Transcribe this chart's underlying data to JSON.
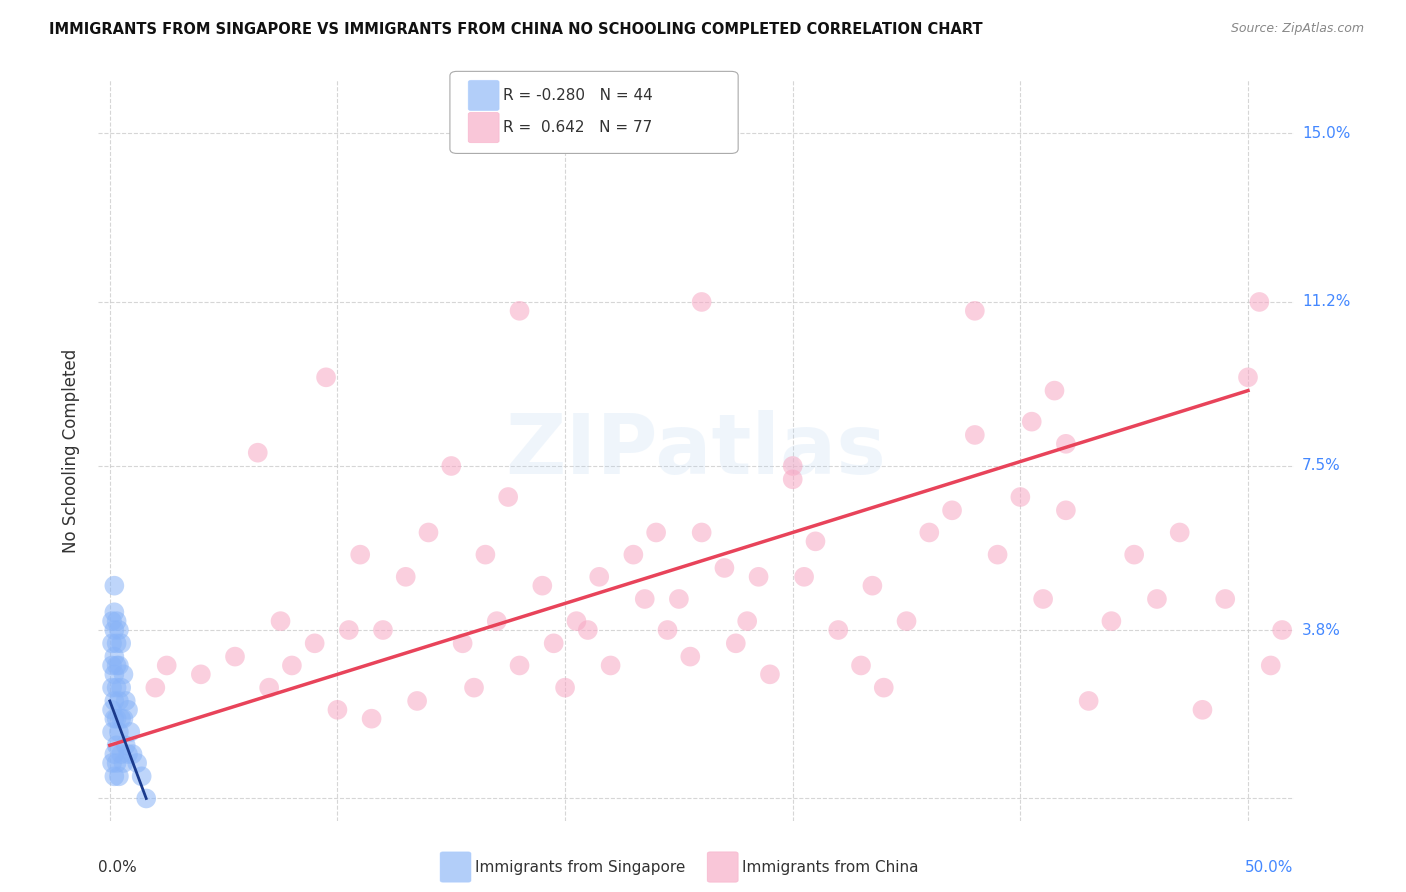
{
  "title": "IMMIGRANTS FROM SINGAPORE VS IMMIGRANTS FROM CHINA NO SCHOOLING COMPLETED CORRELATION CHART",
  "source": "Source: ZipAtlas.com",
  "ylabel": "No Schooling Completed",
  "ytick_vals": [
    0.0,
    0.038,
    0.075,
    0.112,
    0.15
  ],
  "ytick_labels": [
    "",
    "3.8%",
    "7.5%",
    "11.2%",
    "15.0%"
  ],
  "xtick_vals": [
    0.0,
    0.1,
    0.2,
    0.3,
    0.4,
    0.5
  ],
  "xlim": [
    -0.005,
    0.52
  ],
  "ylim": [
    -0.005,
    0.162
  ],
  "singapore_R": -0.28,
  "singapore_N": 44,
  "china_R": 0.642,
  "china_N": 77,
  "singapore_color": "#89b4f7",
  "china_color": "#f7a8c4",
  "singapore_line_color": "#1a3a8c",
  "china_line_color": "#e8435a",
  "legend_label_singapore": "Immigrants from Singapore",
  "legend_label_china": "Immigrants from China",
  "background_color": "#ffffff",
  "watermark_text": "ZIPatlas",
  "china_line_x0": 0.0,
  "china_line_x1": 0.5,
  "china_line_y0": 0.012,
  "china_line_y1": 0.092,
  "singapore_line_x0": 0.0,
  "singapore_line_x1": 0.016,
  "singapore_line_y0": 0.022,
  "singapore_line_y1": 0.0,
  "china_x": [
    0.02,
    0.025,
    0.04,
    0.055,
    0.065,
    0.07,
    0.075,
    0.08,
    0.09,
    0.095,
    0.1,
    0.105,
    0.11,
    0.115,
    0.12,
    0.13,
    0.135,
    0.14,
    0.15,
    0.155,
    0.16,
    0.165,
    0.17,
    0.175,
    0.18,
    0.19,
    0.195,
    0.2,
    0.205,
    0.21,
    0.215,
    0.22,
    0.23,
    0.235,
    0.24,
    0.245,
    0.25,
    0.255,
    0.26,
    0.27,
    0.275,
    0.28,
    0.285,
    0.29,
    0.3,
    0.305,
    0.31,
    0.32,
    0.33,
    0.335,
    0.34,
    0.35,
    0.36,
    0.37,
    0.38,
    0.39,
    0.4,
    0.405,
    0.41,
    0.415,
    0.42,
    0.43,
    0.44,
    0.45,
    0.46,
    0.47,
    0.48,
    0.49,
    0.5,
    0.505,
    0.51,
    0.515,
    0.42,
    0.3,
    0.18,
    0.26,
    0.38
  ],
  "china_y": [
    0.025,
    0.03,
    0.028,
    0.032,
    0.078,
    0.025,
    0.04,
    0.03,
    0.035,
    0.095,
    0.02,
    0.038,
    0.055,
    0.018,
    0.038,
    0.05,
    0.022,
    0.06,
    0.075,
    0.035,
    0.025,
    0.055,
    0.04,
    0.068,
    0.03,
    0.048,
    0.035,
    0.025,
    0.04,
    0.038,
    0.05,
    0.03,
    0.055,
    0.045,
    0.06,
    0.038,
    0.045,
    0.032,
    0.06,
    0.052,
    0.035,
    0.04,
    0.05,
    0.028,
    0.072,
    0.05,
    0.058,
    0.038,
    0.03,
    0.048,
    0.025,
    0.04,
    0.06,
    0.065,
    0.082,
    0.055,
    0.068,
    0.085,
    0.045,
    0.092,
    0.08,
    0.022,
    0.04,
    0.055,
    0.045,
    0.06,
    0.02,
    0.045,
    0.095,
    0.112,
    0.03,
    0.038,
    0.065,
    0.075,
    0.11,
    0.112,
    0.11
  ],
  "singapore_x": [
    0.001,
    0.001,
    0.001,
    0.001,
    0.001,
    0.001,
    0.001,
    0.002,
    0.002,
    0.002,
    0.002,
    0.002,
    0.002,
    0.002,
    0.002,
    0.002,
    0.003,
    0.003,
    0.003,
    0.003,
    0.003,
    0.003,
    0.003,
    0.004,
    0.004,
    0.004,
    0.004,
    0.004,
    0.005,
    0.005,
    0.005,
    0.005,
    0.006,
    0.006,
    0.006,
    0.007,
    0.007,
    0.008,
    0.008,
    0.009,
    0.01,
    0.012,
    0.014,
    0.016
  ],
  "singapore_y": [
    0.008,
    0.015,
    0.02,
    0.025,
    0.03,
    0.035,
    0.04,
    0.005,
    0.01,
    0.018,
    0.022,
    0.028,
    0.032,
    0.038,
    0.042,
    0.048,
    0.008,
    0.012,
    0.018,
    0.025,
    0.03,
    0.035,
    0.04,
    0.005,
    0.015,
    0.022,
    0.03,
    0.038,
    0.01,
    0.018,
    0.025,
    0.035,
    0.008,
    0.018,
    0.028,
    0.012,
    0.022,
    0.01,
    0.02,
    0.015,
    0.01,
    0.008,
    0.005,
    0.0
  ]
}
